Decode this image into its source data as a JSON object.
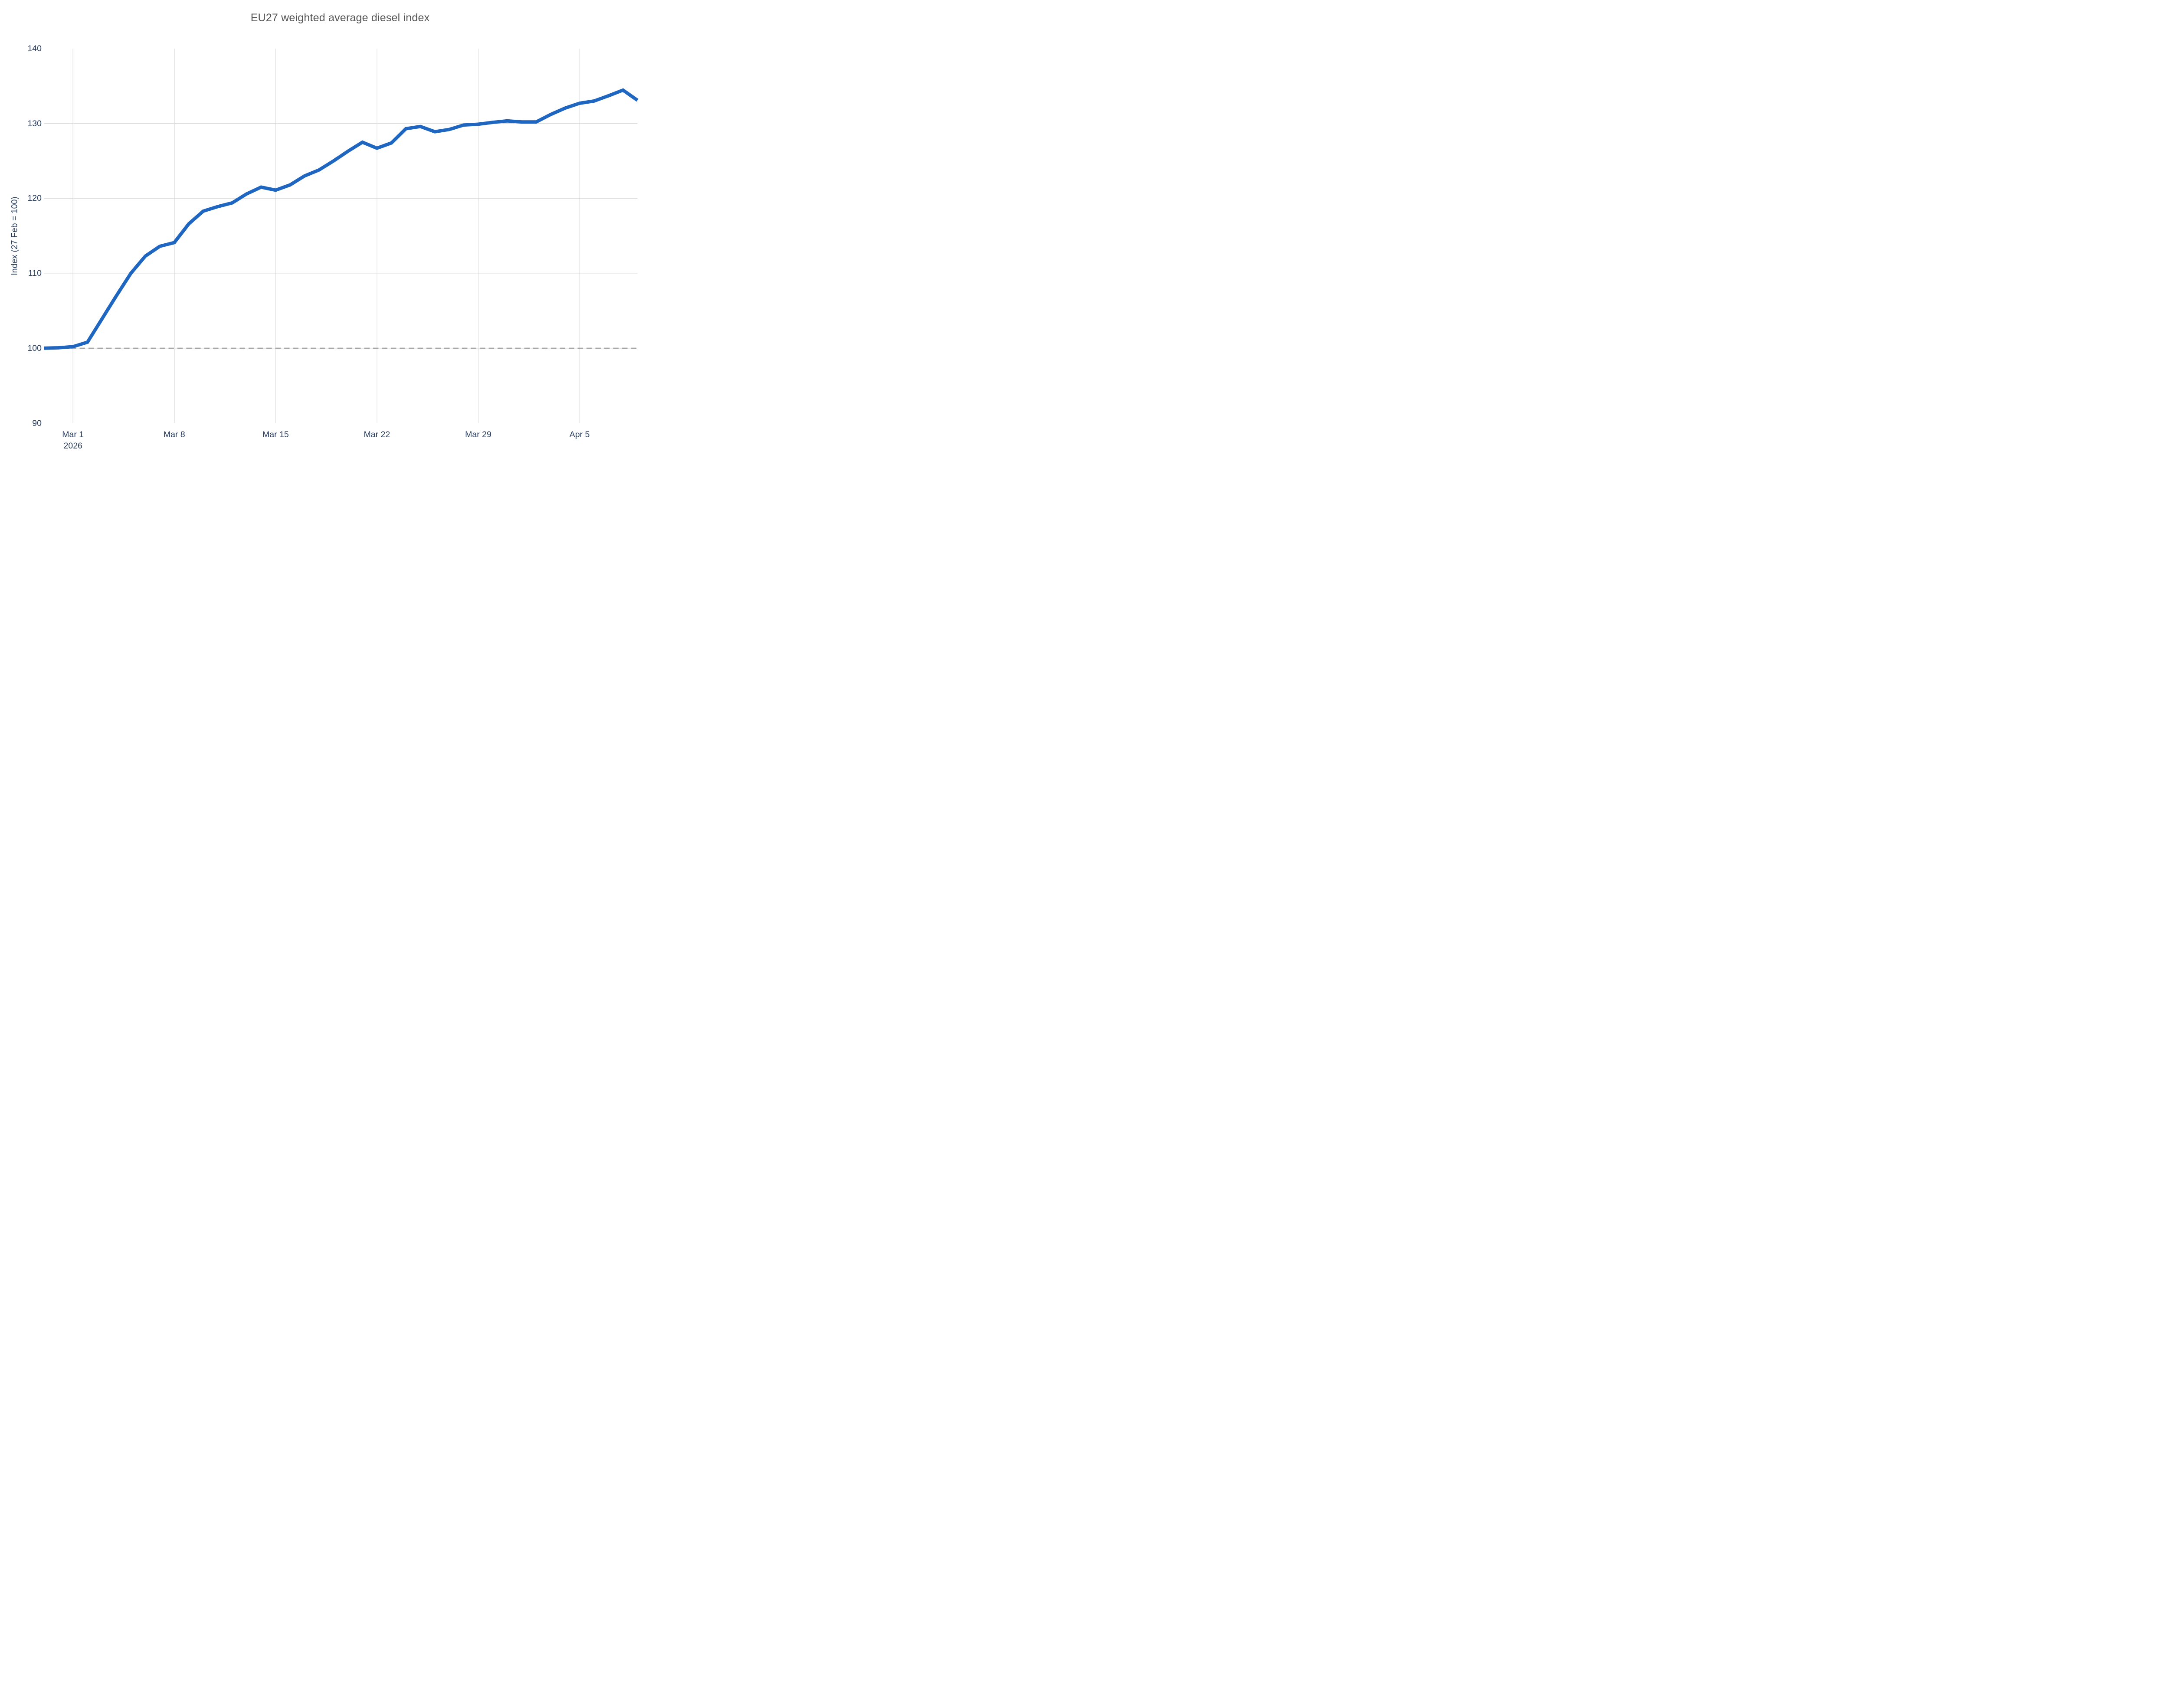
{
  "colors": {
    "background": "#ffffff",
    "grid": "#dcdcdc",
    "baseline_dash": "#a6a6a6",
    "tick_label": "#2a3f5f",
    "title": "#545454",
    "line": "#1f66c1"
  },
  "chart_data": {
    "type": "line",
    "title": "EU27 weighted average diesel index",
    "xlabel": "",
    "ylabel": "Index (27 Feb = 100)",
    "ylim": [
      90,
      140
    ],
    "yticks": [
      90,
      100,
      110,
      120,
      130,
      140
    ],
    "xticks": [
      {
        "label": "Mar 1",
        "sublabel": "2026",
        "date": "2026-03-01"
      },
      {
        "label": "Mar 8",
        "sublabel": "",
        "date": "2026-03-08"
      },
      {
        "label": "Mar 15",
        "sublabel": "",
        "date": "2026-03-15"
      },
      {
        "label": "Mar 22",
        "sublabel": "",
        "date": "2026-03-22"
      },
      {
        "label": "Mar 29",
        "sublabel": "",
        "date": "2026-03-29"
      },
      {
        "label": "Apr 5",
        "sublabel": "",
        "date": "2026-04-05"
      }
    ],
    "grid": true,
    "legend": false,
    "baseline": {
      "value": 100,
      "style": "dashed"
    },
    "series": [
      {
        "name": "EU27 weighted average diesel index",
        "color": "#1f66c1",
        "x": [
          "2026-02-27",
          "2026-02-28",
          "2026-03-01",
          "2026-03-02",
          "2026-03-03",
          "2026-03-04",
          "2026-03-05",
          "2026-03-06",
          "2026-03-07",
          "2026-03-08",
          "2026-03-09",
          "2026-03-10",
          "2026-03-11",
          "2026-03-12",
          "2026-03-13",
          "2026-03-14",
          "2026-03-15",
          "2026-03-16",
          "2026-03-17",
          "2026-03-18",
          "2026-03-19",
          "2026-03-20",
          "2026-03-21",
          "2026-03-22",
          "2026-03-23",
          "2026-03-24",
          "2026-03-25",
          "2026-03-26",
          "2026-03-27",
          "2026-03-28",
          "2026-03-29",
          "2026-03-30",
          "2026-03-31",
          "2026-04-01",
          "2026-04-02",
          "2026-04-03",
          "2026-04-04",
          "2026-04-05",
          "2026-04-06",
          "2026-04-07",
          "2026-04-08",
          "2026-04-09"
        ],
        "y": [
          100,
          100.05,
          100.2,
          100.8,
          103.9,
          107,
          110,
          112.3,
          113.6,
          114.1,
          116.6,
          118.3,
          118.9,
          119.4,
          120.6,
          121.5,
          121.1,
          121.8,
          123,
          123.8,
          125,
          126.3,
          127.5,
          126.7,
          127.4,
          129.3,
          129.6,
          128.9,
          129.2,
          129.8,
          129.9,
          130.15,
          130.35,
          130.2,
          130.2,
          131.2,
          132.05,
          132.7,
          133,
          133.7,
          134.45,
          133.1
        ]
      }
    ]
  }
}
